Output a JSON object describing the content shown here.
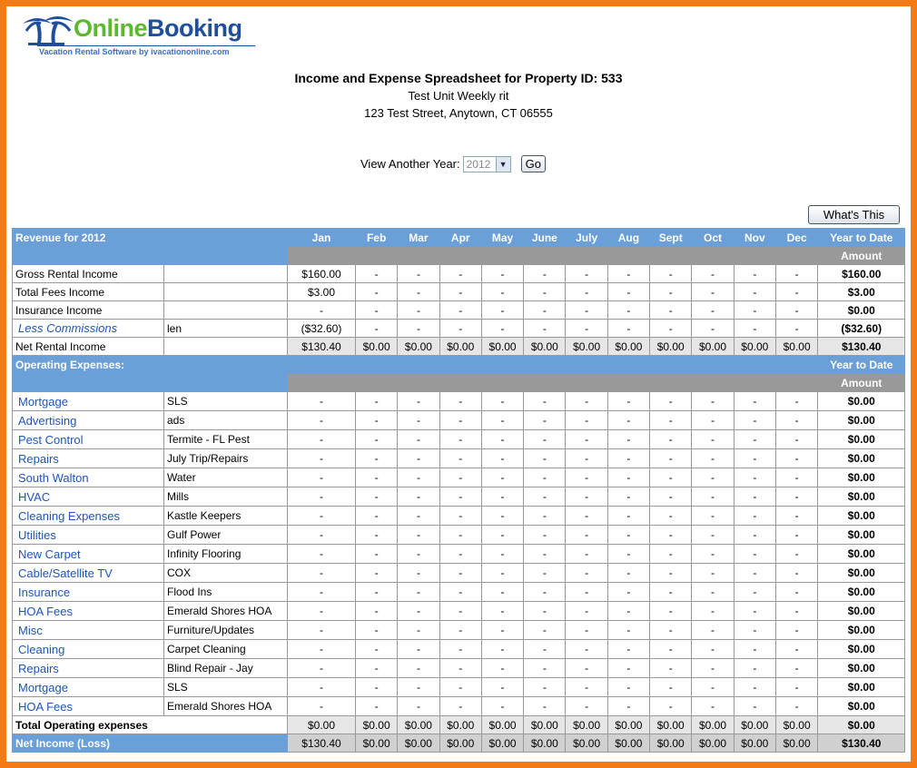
{
  "logo": {
    "brand_part1": "Online",
    "brand_part2": "Booking",
    "tagline": "Vacation Rental Software by ivacationonline.com"
  },
  "header": {
    "title": "Income and Expense Spreadsheet for Property ID: 533",
    "unit_name": "Test Unit Weekly rit",
    "address": "123 Test Street, Anytown, CT 06555"
  },
  "year_selector": {
    "label": "View Another Year:",
    "selected": "2012",
    "go_label": "Go"
  },
  "whats_this_label": "What's This",
  "colors": {
    "header_blue": "#6a9fd8",
    "header_gray": "#999999",
    "link": "#1f55b5",
    "frame": "#f47b14"
  },
  "table": {
    "revenue_heading": "Revenue for 2012",
    "months": [
      "Jan",
      "Feb",
      "Mar",
      "Apr",
      "May",
      "June",
      "July",
      "Aug",
      "Sept",
      "Oct",
      "Nov",
      "Dec"
    ],
    "ytd_label": "Year to Date",
    "amount_label": "Amount",
    "revenue_rows": [
      {
        "label": "Gross Rental Income",
        "desc": "",
        "values": [
          "$160.00",
          "-",
          "-",
          "-",
          "-",
          "-",
          "-",
          "-",
          "-",
          "-",
          "-",
          "-"
        ],
        "ytd": "$160.00"
      },
      {
        "label": "Total Fees Income",
        "desc": "",
        "values": [
          "$3.00",
          "-",
          "-",
          "-",
          "-",
          "-",
          "-",
          "-",
          "-",
          "-",
          "-",
          "-"
        ],
        "ytd": "$3.00"
      },
      {
        "label": "Insurance Income",
        "desc": "",
        "values": [
          "-",
          "-",
          "-",
          "-",
          "-",
          "-",
          "-",
          "-",
          "-",
          "-",
          "-",
          "-"
        ],
        "ytd": "$0.00"
      },
      {
        "label": "Less Commissions",
        "desc": "len",
        "link": true,
        "values": [
          "($32.60)",
          "-",
          "-",
          "-",
          "-",
          "-",
          "-",
          "-",
          "-",
          "-",
          "-",
          "-"
        ],
        "ytd": "($32.60)"
      }
    ],
    "net_rental": {
      "label": "Net Rental Income",
      "values": [
        "$130.40",
        "$0.00",
        "$0.00",
        "$0.00",
        "$0.00",
        "$0.00",
        "$0.00",
        "$0.00",
        "$0.00",
        "$0.00",
        "$0.00",
        "$0.00"
      ],
      "ytd": "$130.40"
    },
    "opex_heading": "Operating Expenses:",
    "expense_rows": [
      {
        "label": "Mortgage",
        "desc": "SLS"
      },
      {
        "label": "Advertising",
        "desc": "ads"
      },
      {
        "label": "Pest Control",
        "desc": "Termite - FL Pest"
      },
      {
        "label": "Repairs",
        "desc": "July Trip/Repairs"
      },
      {
        "label": "South Walton",
        "desc": "Water"
      },
      {
        "label": "HVAC",
        "desc": "Mills"
      },
      {
        "label": "Cleaning Expenses",
        "desc": "Kastle Keepers"
      },
      {
        "label": "Utilities",
        "desc": "Gulf Power"
      },
      {
        "label": "New Carpet",
        "desc": "Infinity Flooring"
      },
      {
        "label": "Cable/Satellite TV",
        "desc": "COX"
      },
      {
        "label": "Insurance",
        "desc": "Flood Ins"
      },
      {
        "label": "HOA Fees",
        "desc": "Emerald Shores HOA"
      },
      {
        "label": "Misc",
        "desc": "Furniture/Updates"
      },
      {
        "label": "Cleaning",
        "desc": "Carpet Cleaning"
      },
      {
        "label": "Repairs",
        "desc": "Blind Repair - Jay"
      },
      {
        "label": "Mortgage",
        "desc": "SLS"
      },
      {
        "label": "HOA Fees",
        "desc": "Emerald Shores HOA"
      }
    ],
    "expense_cell": "-",
    "expense_ytd": "$0.00",
    "total_opex": {
      "label": "Total Operating expenses",
      "values": [
        "$0.00",
        "$0.00",
        "$0.00",
        "$0.00",
        "$0.00",
        "$0.00",
        "$0.00",
        "$0.00",
        "$0.00",
        "$0.00",
        "$0.00",
        "$0.00"
      ],
      "ytd": "$0.00"
    },
    "net_income": {
      "label": "Net Income (Loss)",
      "values": [
        "$130.40",
        "$0.00",
        "$0.00",
        "$0.00",
        "$0.00",
        "$0.00",
        "$0.00",
        "$0.00",
        "$0.00",
        "$0.00",
        "$0.00",
        "$0.00"
      ],
      "ytd": "$130.40"
    }
  }
}
